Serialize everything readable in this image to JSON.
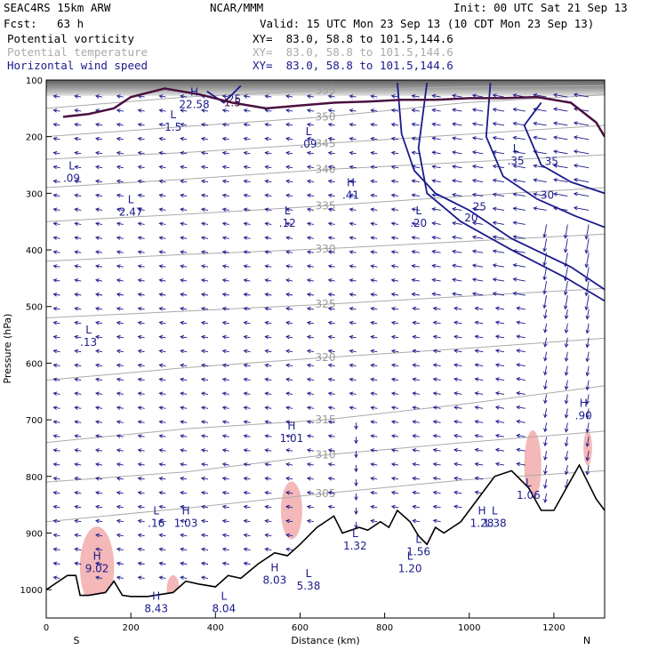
{
  "header": {
    "model": "SEAC4RS 15km ARW",
    "center": "NCAR/MMM",
    "init": "Init: 00 UTC Sat 21 Sep 13",
    "fcst_label": "Fcst:",
    "fcst_value": "63 h",
    "valid": "Valid: 15 UTC Mon 23 Sep 13 (10 CDT Mon 23 Sep 13)"
  },
  "fields": [
    {
      "name": "Potential vorticity",
      "xy": "XY=  83.0, 58.8 to 101.5,144.6",
      "color": "#000000"
    },
    {
      "name": "Potential temperature",
      "xy": "XY=  83.0, 58.8 to 101.5,144.6",
      "color": "#aaaaaa"
    },
    {
      "name": "Horizontal wind speed",
      "xy": "XY=  83.0, 58.8 to 101.5,144.6",
      "color": "#1a1a8c"
    }
  ],
  "chart_data": {
    "type": "cross-section",
    "xlabel": "Distance (km)",
    "ylabel": "Pressure (hPa)",
    "xlim": [
      0,
      1320
    ],
    "ylim": [
      1050,
      100
    ],
    "x_ticks": [
      0,
      200,
      400,
      600,
      800,
      1000,
      1200
    ],
    "y_ticks": [
      100,
      200,
      300,
      400,
      500,
      600,
      700,
      800,
      900,
      1000
    ],
    "x_end_labels": {
      "left": "S",
      "right": "N"
    },
    "theta_isentropes": [
      {
        "label": "355",
        "p": [
          150,
          130,
          118,
          112,
          110
        ]
      },
      {
        "label": "350",
        "p": [
          200,
          182,
          165,
          140,
          126
        ]
      },
      {
        "label": "345",
        "p": [
          240,
          228,
          212,
          196,
          180
        ]
      },
      {
        "label": "340",
        "p": [
          290,
          275,
          258,
          245,
          232
        ]
      },
      {
        "label": "335",
        "p": [
          350,
          337,
          322,
          305,
          290
        ]
      },
      {
        "label": "330",
        "p": [
          420,
          408,
          398,
          385,
          372
        ]
      },
      {
        "label": "325",
        "p": [
          520,
          508,
          496,
          482,
          468
        ]
      },
      {
        "label": "320",
        "p": [
          630,
          608,
          590,
          574,
          556
        ]
      },
      {
        "label": "315",
        "p": [
          740,
          716,
          700,
          672,
          640
        ]
      },
      {
        "label": "310",
        "p": [
          810,
          792,
          762,
          740,
          720
        ]
      },
      {
        "label": "305",
        "p": [
          880,
          856,
          830,
          806,
          790
        ]
      }
    ],
    "theta_x": [
      0,
      330,
      660,
      990,
      1320
    ],
    "wind_speed_contours": [
      {
        "label": "25",
        "points": [
          [
            830,
            105
          ],
          [
            840,
            195
          ],
          [
            870,
            260
          ],
          [
            920,
            300
          ],
          [
            1000,
            330
          ],
          [
            1100,
            380
          ],
          [
            1240,
            430
          ],
          [
            1320,
            470
          ]
        ]
      },
      {
        "label": "20",
        "points": [
          [
            900,
            105
          ],
          [
            880,
            220
          ],
          [
            900,
            300
          ],
          [
            980,
            350
          ],
          [
            1100,
            400
          ],
          [
            1230,
            450
          ],
          [
            1320,
            490
          ]
        ]
      },
      {
        "label": "30",
        "points": [
          [
            1050,
            105
          ],
          [
            1040,
            200
          ],
          [
            1080,
            270
          ],
          [
            1160,
            310
          ],
          [
            1250,
            340
          ],
          [
            1320,
            360
          ]
        ]
      },
      {
        "label": "35",
        "points": [
          [
            1170,
            140
          ],
          [
            1130,
            180
          ],
          [
            1170,
            250
          ],
          [
            1240,
            280
          ],
          [
            1320,
            300
          ]
        ]
      },
      {
        "label": "25",
        "points": [
          [
            380,
            120
          ],
          [
            420,
            140
          ],
          [
            460,
            110
          ]
        ]
      }
    ],
    "pv_highs_lows": [
      {
        "kind": "H",
        "value": "22.58",
        "x": 350,
        "p": 140
      },
      {
        "kind": "L",
        "value": "1.5",
        "x": 300,
        "p": 180
      },
      {
        "kind": "L",
        "value": ".09",
        "x": 60,
        "p": 270
      },
      {
        "kind": "L",
        "value": "2.47",
        "x": 200,
        "p": 330
      },
      {
        "kind": "L",
        "value": ".09",
        "x": 620,
        "p": 210
      },
      {
        "kind": "H",
        "value": ".41",
        "x": 720,
        "p": 300
      },
      {
        "kind": "L",
        "value": ".12",
        "x": 570,
        "p": 350
      },
      {
        "kind": "L",
        "value": ".20",
        "x": 880,
        "p": 350
      },
      {
        "kind": "L",
        "value": ".35",
        "x": 1110,
        "p": 240
      },
      {
        "kind": "L",
        "value": ".13",
        "x": 100,
        "p": 560
      },
      {
        "kind": "H",
        "value": "1.01",
        "x": 580,
        "p": 730
      },
      {
        "kind": "H",
        "value": ".90",
        "x": 1270,
        "p": 690
      },
      {
        "kind": "L",
        "value": ".16",
        "x": 260,
        "p": 880
      },
      {
        "kind": "H",
        "value": "1.03",
        "x": 330,
        "p": 880
      },
      {
        "kind": "L",
        "value": "1.32",
        "x": 730,
        "p": 920
      },
      {
        "kind": "H",
        "value": "9.02",
        "x": 120,
        "p": 960
      },
      {
        "kind": "H",
        "value": "8.43",
        "x": 260,
        "p": 1030
      },
      {
        "kind": "L",
        "value": "8.04",
        "x": 420,
        "p": 1030
      },
      {
        "kind": "H",
        "value": "8.03",
        "x": 540,
        "p": 980
      },
      {
        "kind": "L",
        "value": "5.38",
        "x": 620,
        "p": 990
      },
      {
        "kind": "L",
        "value": "1.56",
        "x": 880,
        "p": 930
      },
      {
        "kind": "L",
        "value": "1.20",
        "x": 860,
        "p": 960
      },
      {
        "kind": "H",
        "value": "1.28",
        "x": 1030,
        "p": 880
      },
      {
        "kind": "L",
        "value": "1.38",
        "x": 1060,
        "p": 880
      },
      {
        "kind": "L",
        "value": "1.06",
        "x": 1140,
        "p": 830
      }
    ],
    "terrain_p": [
      1000,
      985,
      975,
      975,
      1010,
      1010,
      1005,
      985,
      1010,
      1012,
      1012,
      1005,
      985,
      990,
      995,
      975,
      980,
      955,
      935,
      940,
      920,
      890,
      870,
      900,
      890,
      895,
      880,
      890,
      860,
      880,
      905,
      920,
      890,
      900,
      880,
      840,
      800,
      790,
      820,
      860,
      860,
      820,
      780,
      840,
      860
    ],
    "terrain_x": [
      0,
      30,
      50,
      70,
      80,
      100,
      140,
      160,
      180,
      200,
      240,
      300,
      330,
      360,
      400,
      430,
      460,
      500,
      540,
      570,
      600,
      640,
      680,
      700,
      740,
      760,
      790,
      810,
      830,
      860,
      880,
      900,
      920,
      940,
      980,
      1020,
      1060,
      1100,
      1140,
      1170,
      1200,
      1230,
      1260,
      1300,
      1320
    ],
    "pv_tropopause": [
      {
        "label": "1.5",
        "x": [
          40,
          100,
          160,
          200,
          280,
          360,
          440,
          520,
          600,
          680,
          760,
          840,
          920,
          1000,
          1080,
          1160,
          1240,
          1300,
          1320
        ],
        "p": [
          165,
          160,
          150,
          130,
          115,
          125,
          140,
          150,
          145,
          140,
          138,
          135,
          135,
          132,
          132,
          130,
          140,
          175,
          200
        ]
      }
    ]
  }
}
